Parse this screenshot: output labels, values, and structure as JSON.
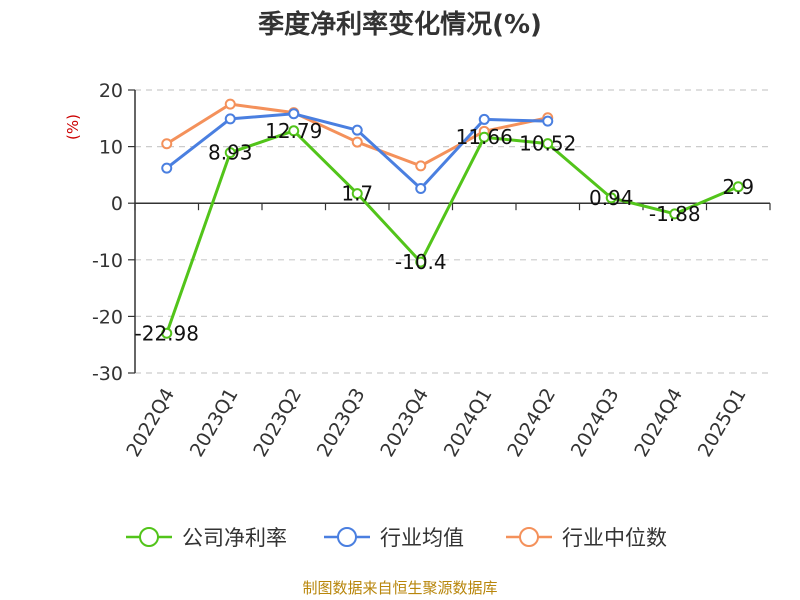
{
  "chart_data": {
    "type": "line",
    "title": "季度净利率变化情况(%)",
    "ylabel": "(%)",
    "ylim": [
      -30,
      20
    ],
    "yticks": [
      20,
      10,
      0,
      -10,
      -20,
      -30
    ],
    "categories": [
      "2022Q4",
      "2023Q1",
      "2023Q2",
      "2023Q3",
      "2023Q4",
      "2024Q1",
      "2024Q2",
      "2024Q3",
      "2024Q4",
      "2025Q1"
    ],
    "grid": true,
    "legend_position": "bottom",
    "series": [
      {
        "name": "公司净利率",
        "color": "#52c41a",
        "values": [
          -22.98,
          8.93,
          12.79,
          1.7,
          -10.4,
          11.66,
          10.52,
          0.94,
          -1.88,
          2.9
        ],
        "labels": [
          "-22.98",
          "8.93",
          "12.79",
          "1.7",
          "-10.4",
          "11.66",
          "10.52",
          "0.94",
          "-1.88",
          "2.9"
        ]
      },
      {
        "name": "行业均值",
        "color": "#4a7fe0",
        "values": [
          6.2,
          14.9,
          15.8,
          12.9,
          2.6,
          14.8,
          14.5,
          null,
          null,
          null
        ]
      },
      {
        "name": "行业中位数",
        "color": "#f4915b",
        "values": [
          10.5,
          17.5,
          16.0,
          10.8,
          6.6,
          12.7,
          15.1,
          null,
          null,
          null
        ]
      }
    ]
  },
  "footer": {
    "source": "制图数据来自恒生聚源数据库"
  }
}
